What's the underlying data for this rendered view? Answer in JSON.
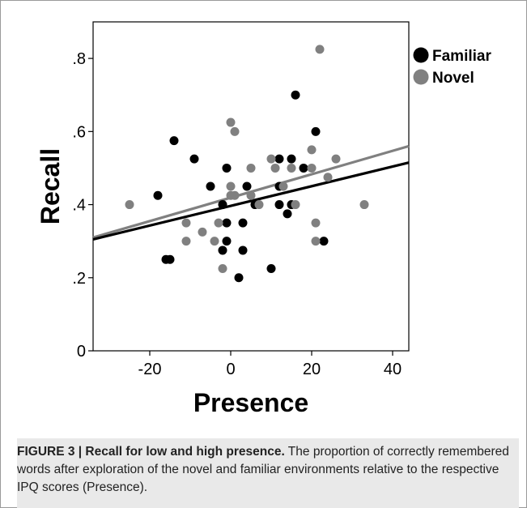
{
  "chart_data": {
    "type": "scatter",
    "xlabel": "Presence",
    "ylabel": "Recall",
    "xlim": [
      -34,
      44
    ],
    "ylim": [
      0,
      0.9
    ],
    "xticks": [
      -20,
      0,
      20,
      40
    ],
    "xtick_labels": [
      "-20",
      "0",
      "20",
      "40"
    ],
    "yticks": [
      0,
      0.2,
      0.4,
      0.6,
      0.8
    ],
    "ytick_labels": [
      "0",
      ".2",
      ".4",
      ".6",
      ".8"
    ],
    "grid": false,
    "legend_position": "right-outside-top",
    "series": [
      {
        "name": "Familiar",
        "color": "#000000",
        "fit": {
          "x": [
            -34,
            44
          ],
          "y": [
            0.305,
            0.515
          ]
        },
        "points": [
          [
            -18,
            0.425
          ],
          [
            -16,
            0.25
          ],
          [
            -15,
            0.25
          ],
          [
            -14,
            0.575
          ],
          [
            -9,
            0.525
          ],
          [
            -5,
            0.45
          ],
          [
            -2,
            0.4
          ],
          [
            -2,
            0.275
          ],
          [
            -1,
            0.5
          ],
          [
            -1,
            0.35
          ],
          [
            -1,
            0.3
          ],
          [
            2,
            0.2
          ],
          [
            3,
            0.35
          ],
          [
            3,
            0.275
          ],
          [
            4,
            0.45
          ],
          [
            6,
            0.4
          ],
          [
            10,
            0.225
          ],
          [
            12,
            0.525
          ],
          [
            12,
            0.45
          ],
          [
            12,
            0.4
          ],
          [
            14,
            0.375
          ],
          [
            15,
            0.525
          ],
          [
            15,
            0.4
          ],
          [
            16,
            0.7
          ],
          [
            18,
            0.5
          ],
          [
            21,
            0.6
          ],
          [
            23,
            0.3
          ]
        ]
      },
      {
        "name": "Novel",
        "color": "#808080",
        "fit": {
          "x": [
            -34,
            44
          ],
          "y": [
            0.31,
            0.56
          ]
        },
        "points": [
          [
            -25,
            0.4
          ],
          [
            -11,
            0.35
          ],
          [
            -11,
            0.3
          ],
          [
            -7,
            0.325
          ],
          [
            -4,
            0.3
          ],
          [
            -3,
            0.35
          ],
          [
            -2,
            0.225
          ],
          [
            0,
            0.625
          ],
          [
            0,
            0.45
          ],
          [
            0,
            0.425
          ],
          [
            1,
            0.6
          ],
          [
            1,
            0.425
          ],
          [
            5,
            0.5
          ],
          [
            5,
            0.425
          ],
          [
            7,
            0.4
          ],
          [
            10,
            0.525
          ],
          [
            11,
            0.5
          ],
          [
            13,
            0.45
          ],
          [
            15,
            0.5
          ],
          [
            16,
            0.4
          ],
          [
            20,
            0.55
          ],
          [
            20,
            0.5
          ],
          [
            21,
            0.35
          ],
          [
            21,
            0.3
          ],
          [
            22,
            0.825
          ],
          [
            24,
            0.475
          ],
          [
            26,
            0.525
          ],
          [
            33,
            0.4
          ]
        ]
      }
    ]
  },
  "caption": {
    "label": "FIGURE 3 | Recall for low and high presence.",
    "text": " The proportion of correctly remembered words after exploration of the novel and familiar environments relative to the respective IPQ scores (Presence)."
  }
}
